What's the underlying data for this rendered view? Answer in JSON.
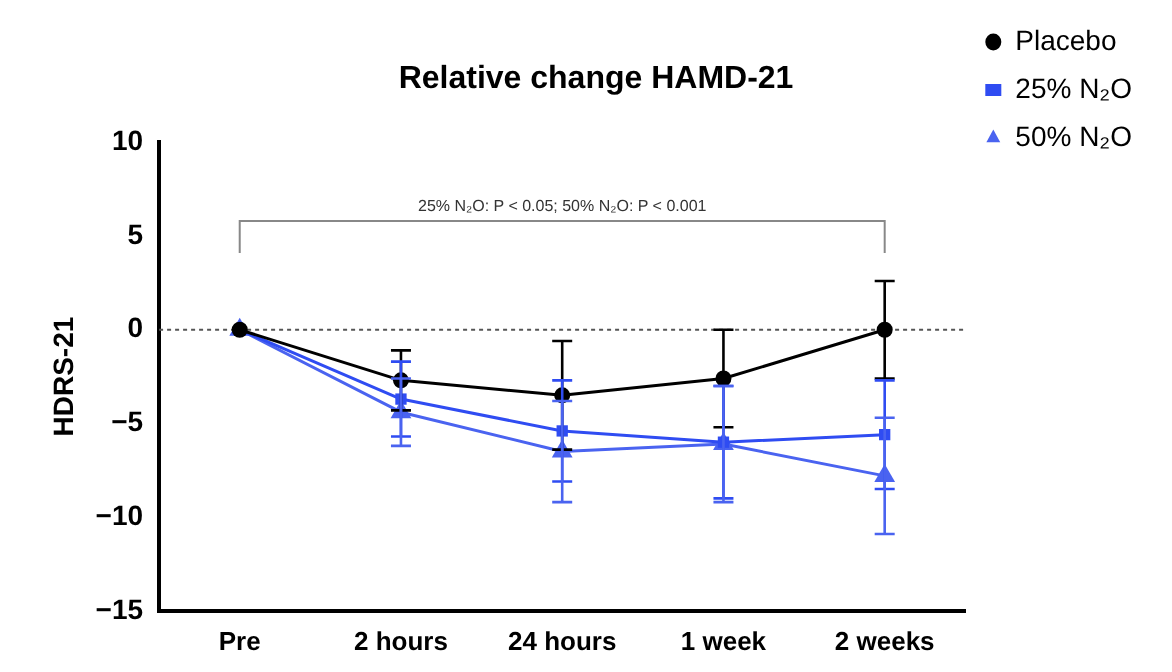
{
  "chart_data": {
    "type": "line",
    "title": "Relative change HAMD-21",
    "ylabel": "HDRS-21",
    "categories": [
      "Pre",
      "2 hours",
      "24 hours",
      "1 week",
      "2 weeks"
    ],
    "series": [
      {
        "name": "Placebo",
        "color": "#000000",
        "marker": "circle",
        "values": [
          0,
          -2.7,
          -3.5,
          -2.6,
          0
        ],
        "errors": [
          null,
          1.6,
          2.9,
          2.6,
          2.6
        ]
      },
      {
        "name": "25% N₂O",
        "color": "#2f4cf2",
        "marker": "square",
        "values": [
          0,
          -3.7,
          -5.4,
          -6.0,
          -5.6
        ],
        "errors": [
          null,
          2.0,
          2.7,
          3.0,
          2.9
        ]
      },
      {
        "name": "50% N₂O",
        "color": "#4a63f0",
        "marker": "triangle",
        "values": [
          0,
          -4.4,
          -6.5,
          -6.1,
          -7.8
        ],
        "errors": [
          null,
          1.8,
          2.7,
          3.1,
          3.1
        ]
      }
    ],
    "ylim": [
      -15,
      10
    ],
    "yticks": [
      -15,
      -10,
      -5,
      0,
      5,
      10
    ],
    "grid": false,
    "legend": "top right",
    "ref_lines": [
      {
        "axis": "y",
        "value": 0,
        "color": "#555555",
        "line_style": "dotted"
      }
    ],
    "annotations": [
      "25% N₂O: P < 0.05; 50% N₂O: P < 0.001"
    ]
  }
}
